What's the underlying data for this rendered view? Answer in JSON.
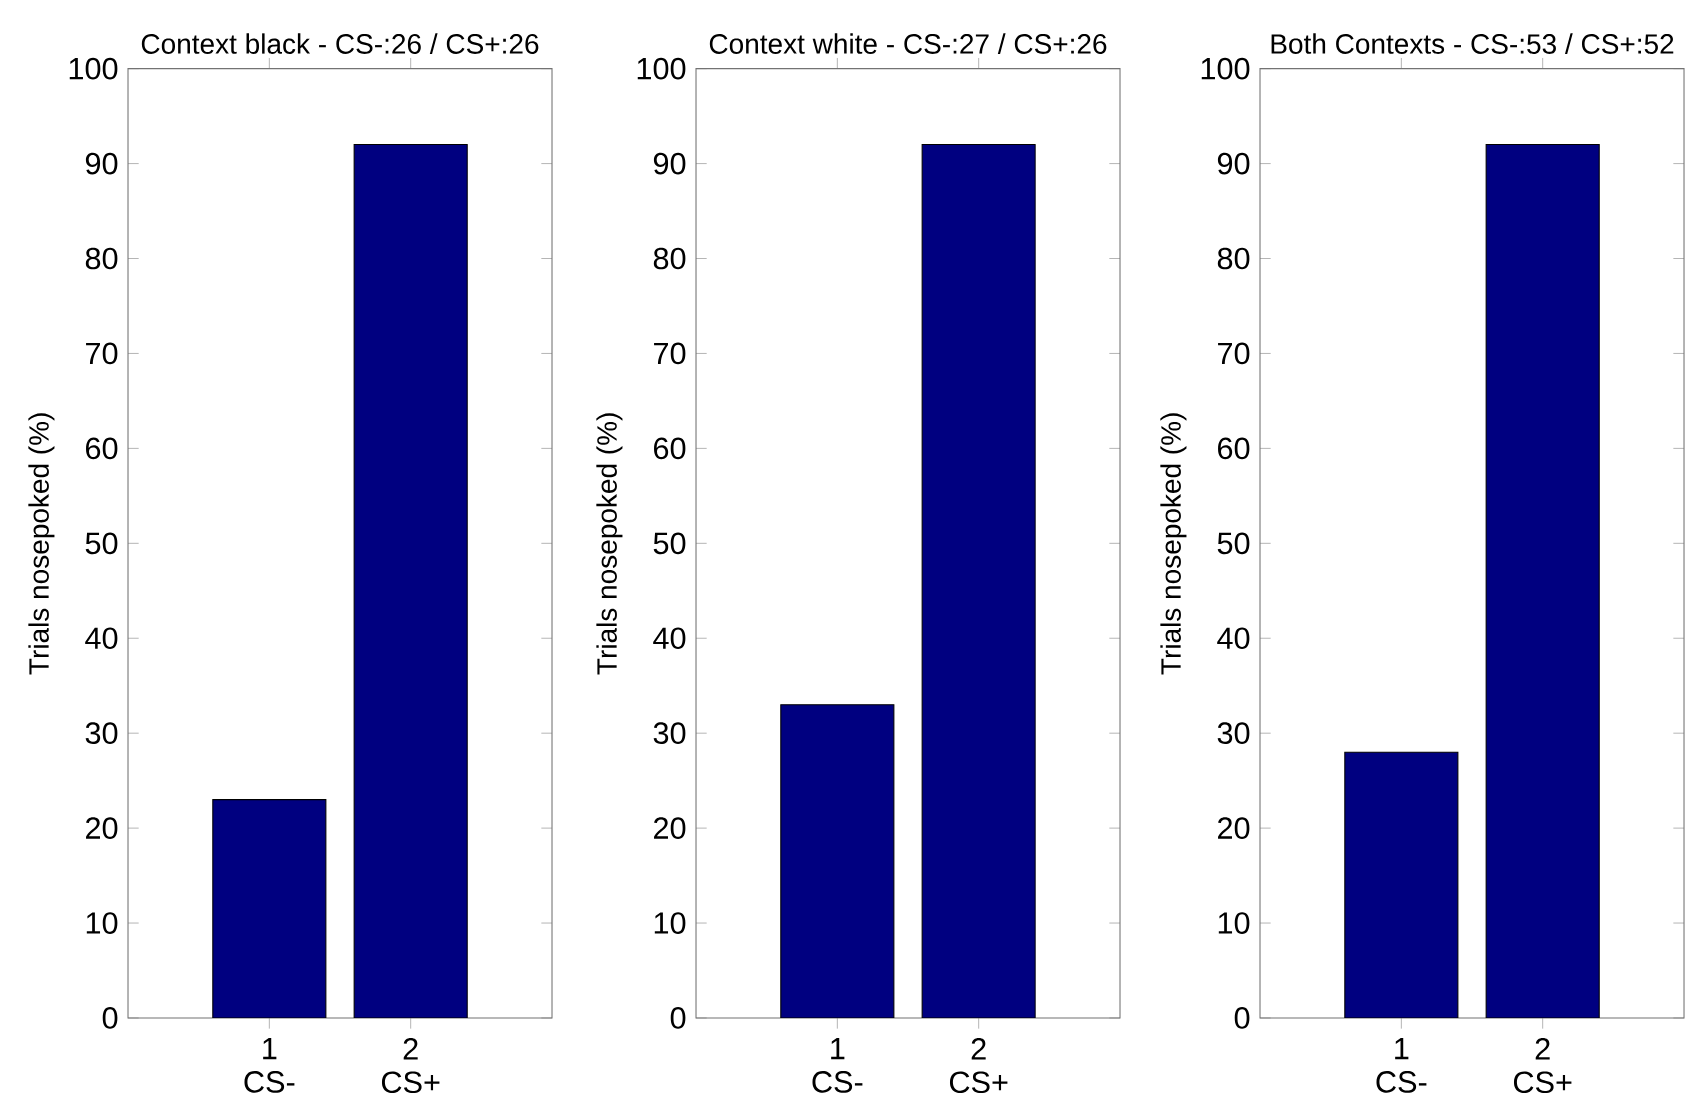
{
  "chart_data": [
    {
      "type": "bar",
      "title": "Context black - CS-:26 / CS+:26",
      "ylabel": "Trials nosepoked (%)",
      "categories": [
        "1 CS-",
        "2 CS+"
      ],
      "values": [
        23,
        92
      ],
      "color": "#000080",
      "ylim": [
        0,
        100
      ],
      "yticks": [
        0,
        10,
        20,
        30,
        40,
        50,
        60,
        70,
        80,
        90,
        100
      ]
    },
    {
      "type": "bar",
      "title": "Context white - CS-:27 / CS+:26",
      "ylabel": "Trials nosepoked (%)",
      "categories": [
        "1 CS-",
        "2 CS+"
      ],
      "values": [
        33,
        92
      ],
      "color": "#000080",
      "ylim": [
        0,
        100
      ],
      "yticks": [
        0,
        10,
        20,
        30,
        40,
        50,
        60,
        70,
        80,
        90,
        100
      ]
    },
    {
      "type": "bar",
      "title": "Both Contexts - CS-:53 / CS+:52",
      "ylabel": "Trials nosepoked (%)",
      "categories": [
        "1 CS-",
        "2 CS+"
      ],
      "values": [
        28,
        92
      ],
      "color": "#000080",
      "ylim": [
        0,
        100
      ],
      "yticks": [
        0,
        10,
        20,
        30,
        40,
        50,
        60,
        70,
        80,
        90,
        100
      ]
    }
  ]
}
